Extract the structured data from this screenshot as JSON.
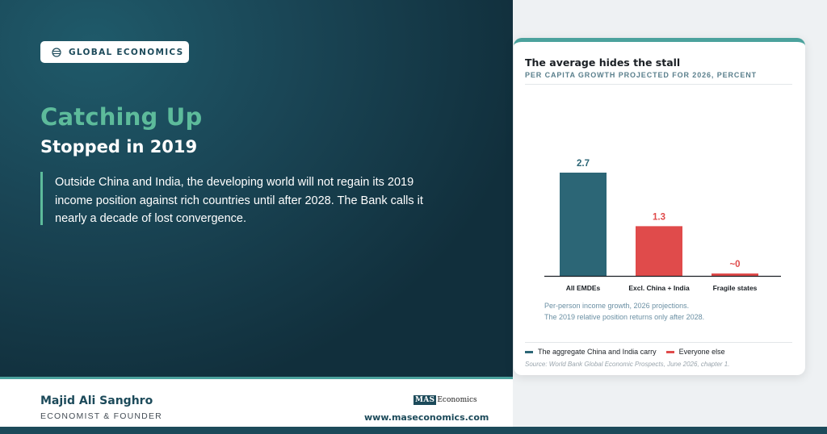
{
  "tag": {
    "icon": "globe-icon",
    "label": "GLOBAL ECONOMICS"
  },
  "headline": {
    "accent": "Catching Up",
    "main": "Stopped in 2019"
  },
  "quote": {
    "lines": [
      "Outside China and India, the developing world will not regain its 2019",
      "income position against rich countries until after 2028. The Bank calls it",
      "nearly a decade of lost convergence."
    ]
  },
  "footer": {
    "author": "Majid Ali Sanghro",
    "role": "ECONOMIST & FOUNDER",
    "logo_mark": "MAS",
    "logo_text": "Economics",
    "url": "www.maseconomics.com"
  },
  "card": {
    "title": "The average hides the stall",
    "subtitle": "PER CAPITA GROWTH PROJECTED FOR 2026, PERCENT",
    "note": [
      "Per-person income growth, 2026 projections.",
      "The 2019 relative position returns only after 2028."
    ],
    "legend": [
      {
        "label": "The aggregate China and India carry",
        "color": "#2c6676"
      },
      {
        "label": "Everyone else",
        "color": "#e04b4b"
      }
    ],
    "source": "Source: World Bank Global Economic Prospects, June 2026, chapter 1."
  },
  "colors": {
    "teal": "#2c6676",
    "red": "#e04b4b",
    "accent": "#5dbb9b",
    "navy": "#1c4a5a"
  },
  "chart_data": {
    "type": "bar",
    "title": "The average hides the stall",
    "subtitle": "PER CAPITA GROWTH PROJECTED FOR 2026, PERCENT",
    "categories": [
      "All EMDEs",
      "Excl. China + India",
      "Fragile states"
    ],
    "values": [
      2.7,
      1.3,
      0.05
    ],
    "labels": [
      "2.7",
      "1.3",
      "~0"
    ],
    "colors": [
      "#2c6676",
      "#e04b4b",
      "#e04b4b"
    ],
    "ylim": [
      0,
      2.7
    ],
    "grid": false,
    "legend": "bottom"
  }
}
